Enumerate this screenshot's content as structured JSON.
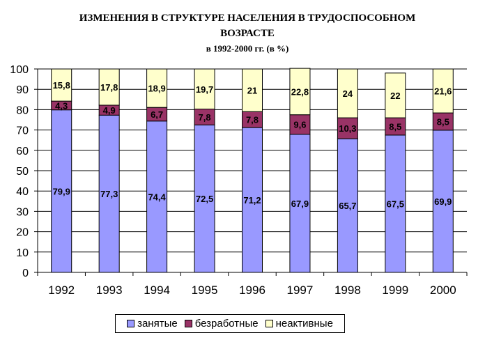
{
  "chart_data": {
    "type": "bar",
    "stacked": true,
    "title_lines": [
      "ИЗМЕНЕНИЯ В СТРУКТУРЕ НАСЕЛЕНИЯ В ТРУДОСПОСОБНОМ",
      "ВОЗРАСТЕ"
    ],
    "subtitle": "в 1992-2000 гг. (в %)",
    "xlabel": "",
    "ylabel": "",
    "ylim": [
      0,
      100
    ],
    "yticks": [
      0,
      10,
      20,
      30,
      40,
      50,
      60,
      70,
      80,
      90,
      100
    ],
    "grid": true,
    "legend_position": "bottom",
    "categories": [
      "1992",
      "1993",
      "1994",
      "1995",
      "1996",
      "1997",
      "1998",
      "1999",
      "2000"
    ],
    "series": [
      {
        "name": "занятые",
        "color": "#9999ff",
        "values": [
          79.9,
          77.3,
          74.4,
          72.5,
          71.2,
          67.9,
          65.7,
          67.5,
          69.9
        ],
        "labels": [
          "79,9",
          "77,3",
          "74,4",
          "72,5",
          "71,2",
          "67,9",
          "65,7",
          "67,5",
          "69,9"
        ]
      },
      {
        "name": "безработные",
        "color": "#993366",
        "values": [
          4.3,
          4.9,
          6.7,
          7.8,
          7.8,
          9.6,
          10.3,
          8.5,
          8.5
        ],
        "labels": [
          "4,3",
          "4,9",
          "6,7",
          "7,8",
          "7,8",
          "9,6",
          "10,3",
          "8,5",
          "8,5"
        ]
      },
      {
        "name": "неактивные",
        "color": "#ffffcc",
        "values": [
          15.8,
          17.8,
          18.9,
          19.7,
          21,
          22.8,
          24,
          22,
          21.6
        ],
        "labels": [
          "15,8",
          "17,8",
          "18,9",
          "19,7",
          "21",
          "22,8",
          "24",
          "22",
          "21,6"
        ]
      }
    ]
  }
}
